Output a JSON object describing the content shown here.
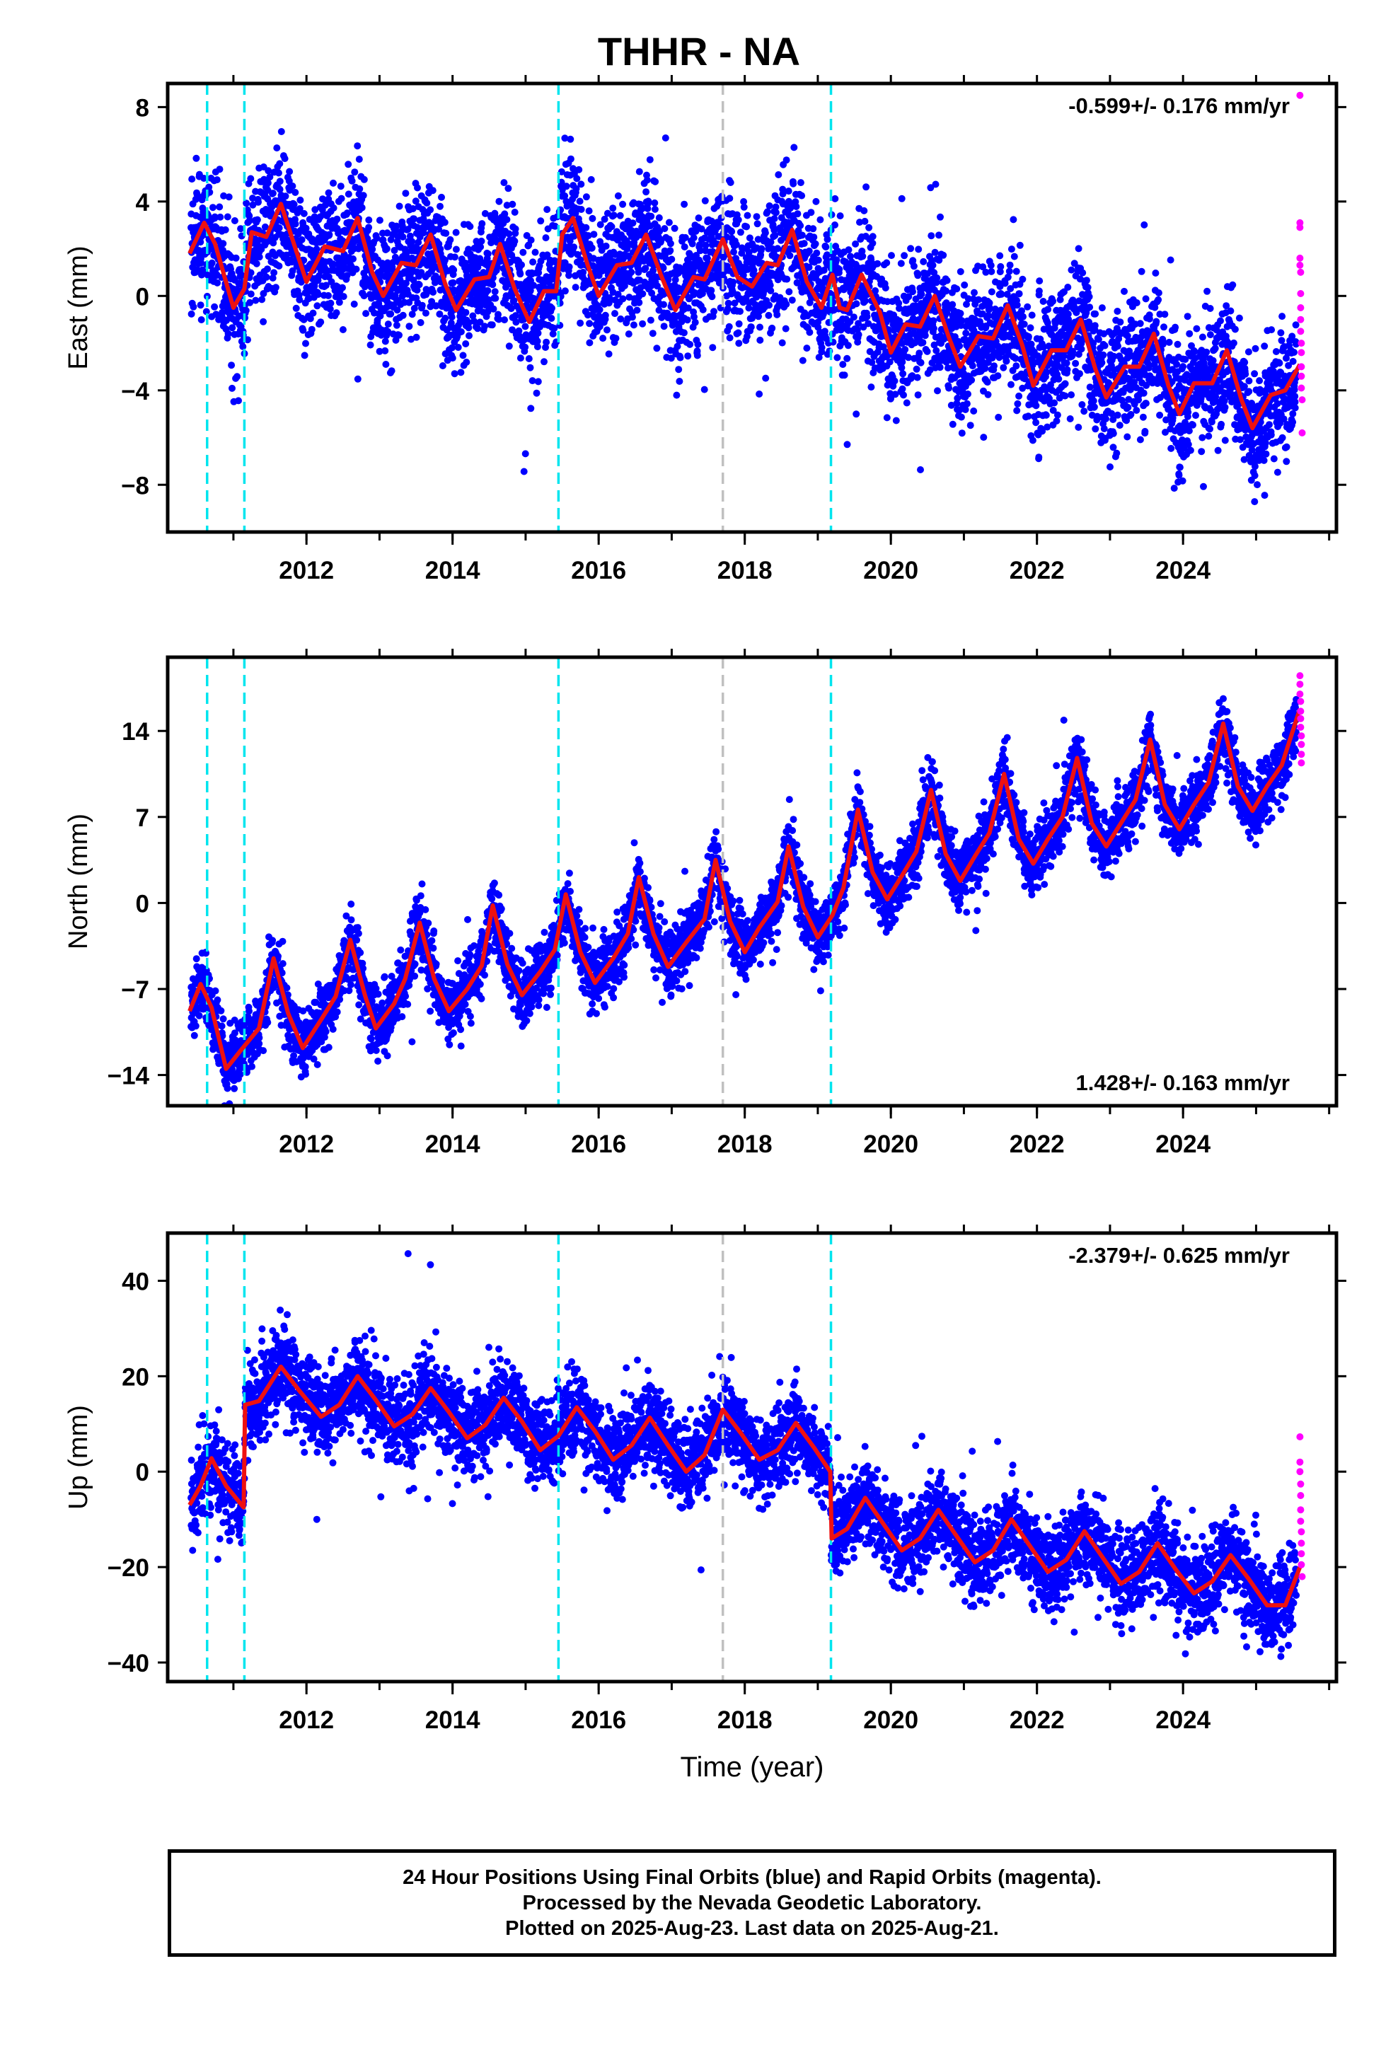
{
  "title": "THHR - NA",
  "caption": {
    "line1": "24 Hour Positions Using Final Orbits (blue) and Rapid Orbits (magenta).",
    "line2": "Processed by the Nevada Geodetic Laboratory.",
    "line3": "Plotted on 2025-Aug-23. Last data on 2025-Aug-21."
  },
  "colors": {
    "final_orbits": "#0000ff",
    "rapid_orbits": "#ff00ff",
    "model_fit": "#ee1111",
    "equipment_change": "#00e5ee",
    "other_change": "#c0c0c0"
  },
  "chart_data": [
    {
      "type": "scatter",
      "ylabel": "East (mm)",
      "xlabel": "",
      "xlim": [
        2010.1,
        2026.1
      ],
      "ylim": [
        -10,
        9
      ],
      "xticks": [
        2012,
        2014,
        2016,
        2018,
        2020,
        2022,
        2024
      ],
      "yticks": [
        -8,
        -4,
        0,
        4,
        8
      ],
      "grid": false,
      "rate_annotation": "-0.599+/- 0.176 mm/yr",
      "annotation_position": "top-right",
      "vertical_lines": [
        {
          "x": 2010.64,
          "color": "cyan"
        },
        {
          "x": 2011.15,
          "color": "cyan"
        },
        {
          "x": 2015.45,
          "color": "cyan"
        },
        {
          "x": 2017.7,
          "color": "gray"
        },
        {
          "x": 2019.18,
          "color": "cyan"
        }
      ],
      "model": {
        "steps": [],
        "knots": [
          [
            2010.4,
            1.8
          ],
          [
            2010.6,
            3.1
          ],
          [
            2010.75,
            2.2
          ],
          [
            2011.0,
            -0.5
          ],
          [
            2011.15,
            0.3
          ],
          [
            2011.25,
            2.7
          ],
          [
            2011.45,
            2.5
          ],
          [
            2011.65,
            3.9
          ],
          [
            2011.85,
            2.0
          ],
          [
            2012.0,
            0.6
          ],
          [
            2012.25,
            2.1
          ],
          [
            2012.5,
            1.9
          ],
          [
            2012.7,
            3.3
          ],
          [
            2012.9,
            1.0
          ],
          [
            2013.05,
            0.0
          ],
          [
            2013.3,
            1.4
          ],
          [
            2013.5,
            1.3
          ],
          [
            2013.7,
            2.6
          ],
          [
            2013.9,
            0.5
          ],
          [
            2014.05,
            -0.6
          ],
          [
            2014.3,
            0.7
          ],
          [
            2014.5,
            0.8
          ],
          [
            2014.65,
            2.2
          ],
          [
            2014.85,
            0.3
          ],
          [
            2015.05,
            -1.1
          ],
          [
            2015.25,
            0.2
          ],
          [
            2015.42,
            0.2
          ],
          [
            2015.5,
            2.6
          ],
          [
            2015.65,
            3.3
          ],
          [
            2015.85,
            1.3
          ],
          [
            2016.0,
            0.0
          ],
          [
            2016.25,
            1.3
          ],
          [
            2016.45,
            1.4
          ],
          [
            2016.65,
            2.6
          ],
          [
            2016.85,
            0.9
          ],
          [
            2017.05,
            -0.6
          ],
          [
            2017.3,
            0.8
          ],
          [
            2017.45,
            0.7
          ],
          [
            2017.7,
            2.4
          ],
          [
            2017.9,
            0.8
          ],
          [
            2018.1,
            0.4
          ],
          [
            2018.3,
            1.4
          ],
          [
            2018.45,
            1.3
          ],
          [
            2018.65,
            2.8
          ],
          [
            2018.85,
            0.6
          ],
          [
            2019.05,
            -0.5
          ],
          [
            2019.2,
            0.9
          ],
          [
            2019.3,
            -0.5
          ],
          [
            2019.4,
            -0.6
          ],
          [
            2019.6,
            0.9
          ],
          [
            2019.85,
            -0.7
          ],
          [
            2020.0,
            -2.4
          ],
          [
            2020.2,
            -1.2
          ],
          [
            2020.4,
            -1.3
          ],
          [
            2020.6,
            0.0
          ],
          [
            2020.8,
            -1.8
          ],
          [
            2020.95,
            -3.0
          ],
          [
            2021.2,
            -1.7
          ],
          [
            2021.4,
            -1.8
          ],
          [
            2021.6,
            -0.4
          ],
          [
            2021.8,
            -2.1
          ],
          [
            2021.95,
            -3.8
          ],
          [
            2022.2,
            -2.3
          ],
          [
            2022.4,
            -2.3
          ],
          [
            2022.6,
            -1.0
          ],
          [
            2022.8,
            -3.1
          ],
          [
            2022.95,
            -4.3
          ],
          [
            2023.2,
            -3.0
          ],
          [
            2023.4,
            -3.0
          ],
          [
            2023.6,
            -1.6
          ],
          [
            2023.8,
            -3.8
          ],
          [
            2023.95,
            -5.0
          ],
          [
            2024.15,
            -3.7
          ],
          [
            2024.4,
            -3.7
          ],
          [
            2024.6,
            -2.3
          ],
          [
            2024.8,
            -4.4
          ],
          [
            2024.95,
            -5.6
          ],
          [
            2025.2,
            -4.2
          ],
          [
            2025.4,
            -4.0
          ],
          [
            2025.6,
            -2.9
          ]
        ]
      },
      "scatter_spread": 1.4,
      "data_start": 2010.42,
      "final_end": 2025.55,
      "rapid_points": [
        [
          2025.6,
          8.5
        ],
        [
          2025.6,
          3.1
        ],
        [
          2025.6,
          2.9
        ],
        [
          2025.6,
          1.6
        ],
        [
          2025.6,
          1.3
        ],
        [
          2025.61,
          1.0
        ],
        [
          2025.61,
          0.1
        ],
        [
          2025.61,
          -0.5
        ],
        [
          2025.61,
          -1.0
        ],
        [
          2025.61,
          -1.5
        ],
        [
          2025.62,
          -2.0
        ],
        [
          2025.62,
          -2.4
        ],
        [
          2025.62,
          -3.0
        ],
        [
          2025.62,
          -3.4
        ],
        [
          2025.62,
          -3.9
        ],
        [
          2025.63,
          -4.4
        ],
        [
          2025.63,
          -5.8
        ]
      ]
    },
    {
      "type": "scatter",
      "ylabel": "North (mm)",
      "xlabel": "",
      "xlim": [
        2010.1,
        2026.1
      ],
      "ylim": [
        -16.5,
        20
      ],
      "xticks": [
        2012,
        2014,
        2016,
        2018,
        2020,
        2022,
        2024
      ],
      "yticks": [
        -14,
        -7,
        0,
        7,
        14
      ],
      "grid": false,
      "rate_annotation": "1.428+/- 0.163 mm/yr",
      "annotation_position": "bottom-right",
      "vertical_lines": [
        {
          "x": 2010.64,
          "color": "cyan"
        },
        {
          "x": 2011.15,
          "color": "cyan"
        },
        {
          "x": 2015.45,
          "color": "cyan"
        },
        {
          "x": 2017.7,
          "color": "gray"
        },
        {
          "x": 2019.18,
          "color": "cyan"
        }
      ],
      "model": {
        "steps": [],
        "knots": [
          [
            2010.4,
            -8.8
          ],
          [
            2010.55,
            -6.6
          ],
          [
            2010.7,
            -8.5
          ],
          [
            2010.9,
            -13.5
          ],
          [
            2011.1,
            -12.0
          ],
          [
            2011.35,
            -10.2
          ],
          [
            2011.55,
            -4.5
          ],
          [
            2011.75,
            -9.0
          ],
          [
            2011.95,
            -11.8
          ],
          [
            2012.2,
            -9.5
          ],
          [
            2012.4,
            -7.6
          ],
          [
            2012.6,
            -3.0
          ],
          [
            2012.8,
            -7.5
          ],
          [
            2012.95,
            -10.2
          ],
          [
            2013.2,
            -8.2
          ],
          [
            2013.35,
            -6.2
          ],
          [
            2013.55,
            -1.6
          ],
          [
            2013.75,
            -6.2
          ],
          [
            2013.95,
            -8.8
          ],
          [
            2014.2,
            -7.0
          ],
          [
            2014.4,
            -5.1
          ],
          [
            2014.55,
            -0.2
          ],
          [
            2014.75,
            -5.0
          ],
          [
            2014.95,
            -7.5
          ],
          [
            2015.2,
            -5.6
          ],
          [
            2015.4,
            -3.8
          ],
          [
            2015.55,
            0.7
          ],
          [
            2015.75,
            -4.0
          ],
          [
            2015.95,
            -6.5
          ],
          [
            2016.2,
            -4.5
          ],
          [
            2016.4,
            -2.5
          ],
          [
            2016.55,
            2.1
          ],
          [
            2016.75,
            -2.5
          ],
          [
            2016.95,
            -5.2
          ],
          [
            2017.2,
            -3.2
          ],
          [
            2017.45,
            -1.3
          ],
          [
            2017.6,
            3.5
          ],
          [
            2017.8,
            -1.5
          ],
          [
            2018.0,
            -4.0
          ],
          [
            2018.2,
            -2.0
          ],
          [
            2018.45,
            0.1
          ],
          [
            2018.6,
            4.6
          ],
          [
            2018.8,
            -0.3
          ],
          [
            2019.0,
            -2.8
          ],
          [
            2019.2,
            -1.0
          ],
          [
            2019.35,
            1.2
          ],
          [
            2019.55,
            7.6
          ],
          [
            2019.75,
            2.5
          ],
          [
            2019.95,
            0.3
          ],
          [
            2020.15,
            2.2
          ],
          [
            2020.35,
            4.2
          ],
          [
            2020.55,
            9.2
          ],
          [
            2020.75,
            4.0
          ],
          [
            2020.95,
            1.8
          ],
          [
            2021.15,
            3.8
          ],
          [
            2021.35,
            5.7
          ],
          [
            2021.55,
            10.5
          ],
          [
            2021.75,
            5.2
          ],
          [
            2021.95,
            3.2
          ],
          [
            2022.15,
            5.2
          ],
          [
            2022.35,
            7.0
          ],
          [
            2022.55,
            11.8
          ],
          [
            2022.75,
            6.5
          ],
          [
            2022.95,
            4.6
          ],
          [
            2023.15,
            6.5
          ],
          [
            2023.35,
            8.4
          ],
          [
            2023.55,
            13.3
          ],
          [
            2023.75,
            8.0
          ],
          [
            2023.95,
            6.0
          ],
          [
            2024.15,
            8.0
          ],
          [
            2024.35,
            9.8
          ],
          [
            2024.55,
            14.6
          ],
          [
            2024.75,
            9.5
          ],
          [
            2024.95,
            7.5
          ],
          [
            2025.15,
            9.5
          ],
          [
            2025.35,
            11.2
          ],
          [
            2025.6,
            15.8
          ]
        ]
      },
      "scatter_spread": 1.3,
      "data_start": 2010.42,
      "final_end": 2025.55,
      "rapid_points": [
        [
          2025.6,
          18.5
        ],
        [
          2025.6,
          17.8
        ],
        [
          2025.6,
          17.0
        ],
        [
          2025.61,
          16.4
        ],
        [
          2025.61,
          15.6
        ],
        [
          2025.61,
          15.0
        ],
        [
          2025.61,
          14.3
        ],
        [
          2025.62,
          13.6
        ],
        [
          2025.62,
          12.9
        ],
        [
          2025.62,
          12.1
        ],
        [
          2025.62,
          11.4
        ]
      ]
    },
    {
      "type": "scatter",
      "ylabel": "Up (mm)",
      "xlabel": "Time (year)",
      "xlim": [
        2010.1,
        2026.1
      ],
      "ylim": [
        -44,
        50
      ],
      "xticks": [
        2012,
        2014,
        2016,
        2018,
        2020,
        2022,
        2024
      ],
      "yticks": [
        -40,
        -20,
        0,
        20,
        40
      ],
      "grid": false,
      "rate_annotation": "-2.379+/- 0.625 mm/yr",
      "annotation_position": "top-right",
      "vertical_lines": [
        {
          "x": 2010.64,
          "color": "cyan"
        },
        {
          "x": 2011.15,
          "color": "cyan"
        },
        {
          "x": 2015.45,
          "color": "cyan"
        },
        {
          "x": 2017.7,
          "color": "gray"
        },
        {
          "x": 2019.18,
          "color": "cyan"
        }
      ],
      "model": {
        "steps": [
          2011.15,
          2019.18
        ],
        "knots": [
          [
            2010.4,
            -7.0
          ],
          [
            2010.55,
            -3.0
          ],
          [
            2010.7,
            2.8
          ],
          [
            2010.9,
            -3.0
          ],
          [
            2011.14,
            -7.5
          ],
          [
            2011.16,
            14.0
          ],
          [
            2011.35,
            14.8
          ],
          [
            2011.65,
            22.0
          ],
          [
            2011.9,
            17.0
          ],
          [
            2012.2,
            11.5
          ],
          [
            2012.45,
            14.0
          ],
          [
            2012.7,
            20.0
          ],
          [
            2012.95,
            15.0
          ],
          [
            2013.2,
            9.5
          ],
          [
            2013.45,
            12.0
          ],
          [
            2013.7,
            17.5
          ],
          [
            2013.95,
            12.5
          ],
          [
            2014.2,
            7.0
          ],
          [
            2014.45,
            9.8
          ],
          [
            2014.7,
            15.5
          ],
          [
            2014.95,
            10.5
          ],
          [
            2015.2,
            4.5
          ],
          [
            2015.45,
            7.5
          ],
          [
            2015.7,
            13.5
          ],
          [
            2015.95,
            8.5
          ],
          [
            2016.2,
            2.5
          ],
          [
            2016.45,
            5.5
          ],
          [
            2016.7,
            11.3
          ],
          [
            2016.95,
            5.5
          ],
          [
            2017.2,
            0.0
          ],
          [
            2017.45,
            3.5
          ],
          [
            2017.7,
            13.0
          ],
          [
            2017.95,
            8.0
          ],
          [
            2018.2,
            2.5
          ],
          [
            2018.45,
            4.5
          ],
          [
            2018.7,
            10.2
          ],
          [
            2018.95,
            5.0
          ],
          [
            2019.17,
            0.0
          ],
          [
            2019.19,
            -14.0
          ],
          [
            2019.4,
            -12.0
          ],
          [
            2019.65,
            -5.5
          ],
          [
            2019.9,
            -11.0
          ],
          [
            2020.15,
            -16.5
          ],
          [
            2020.4,
            -14.0
          ],
          [
            2020.65,
            -8.0
          ],
          [
            2020.9,
            -13.5
          ],
          [
            2021.15,
            -19.0
          ],
          [
            2021.4,
            -16.5
          ],
          [
            2021.65,
            -10.0
          ],
          [
            2021.9,
            -15.5
          ],
          [
            2022.15,
            -21.0
          ],
          [
            2022.4,
            -18.5
          ],
          [
            2022.65,
            -12.5
          ],
          [
            2022.9,
            -18.0
          ],
          [
            2023.15,
            -23.5
          ],
          [
            2023.4,
            -21.0
          ],
          [
            2023.65,
            -15.0
          ],
          [
            2023.9,
            -20.5
          ],
          [
            2024.15,
            -25.5
          ],
          [
            2024.4,
            -23.0
          ],
          [
            2024.65,
            -17.5
          ],
          [
            2024.9,
            -22.5
          ],
          [
            2025.15,
            -28.0
          ],
          [
            2025.4,
            -28.0
          ],
          [
            2025.6,
            -20.0
          ]
        ]
      },
      "scatter_spread": 4.6,
      "data_start": 2010.42,
      "final_end": 2025.55,
      "rapid_points": [
        [
          2025.6,
          7.3
        ],
        [
          2025.6,
          2.0
        ],
        [
          2025.6,
          0.0
        ],
        [
          2025.61,
          -2.6
        ],
        [
          2025.61,
          -5.0
        ],
        [
          2025.61,
          -8.0
        ],
        [
          2025.61,
          -10.4
        ],
        [
          2025.62,
          -12.6
        ],
        [
          2025.62,
          -15.0
        ],
        [
          2025.62,
          -17.2
        ],
        [
          2025.62,
          -19.5
        ],
        [
          2025.63,
          -22.0
        ]
      ]
    }
  ]
}
